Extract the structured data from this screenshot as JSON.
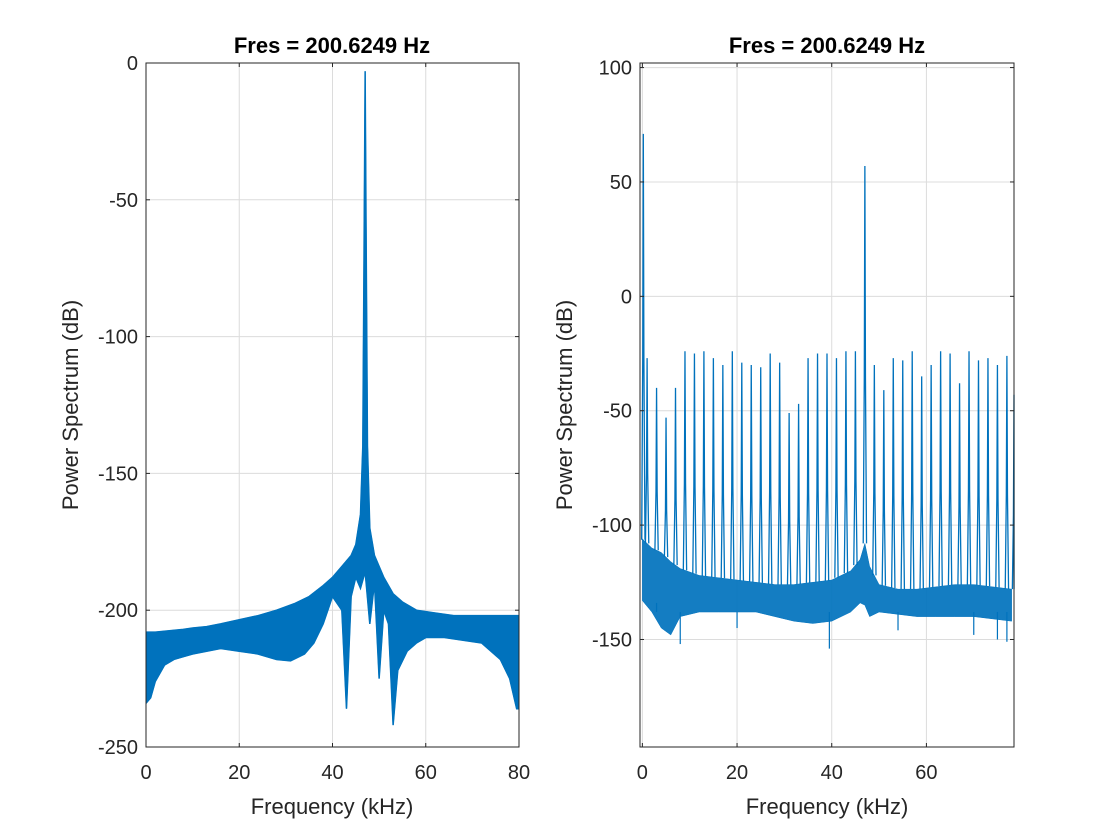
{
  "chart_data": [
    {
      "type": "line",
      "title": "Fres = 200.6249 Hz",
      "xlabel": "Frequency (kHz)",
      "ylabel": "Power Spectrum (dB)",
      "xlim": [
        0,
        80
      ],
      "ylim": [
        -250,
        0
      ],
      "xticks": [
        0,
        20,
        40,
        60,
        80
      ],
      "yticks": [
        -250,
        -200,
        -150,
        -100,
        -50,
        0
      ],
      "grid": true,
      "color": "#0072BD",
      "series": [
        {
          "x": [
            0,
            2,
            5,
            8,
            10,
            13,
            16,
            20,
            24,
            28,
            32,
            35,
            38,
            40,
            42,
            43,
            44,
            45,
            46,
            46.5,
            46.8,
            47,
            47.2,
            47.5,
            48,
            49,
            50,
            51,
            53,
            55,
            58,
            62,
            66,
            70,
            74,
            77,
            80
          ],
          "y": [
            -208,
            -208,
            -207.5,
            -207,
            -206.5,
            -206,
            -205,
            -203.5,
            -202,
            -200,
            -197.5,
            -195,
            -191,
            -188,
            -184,
            -182,
            -180,
            -176,
            -165,
            -140,
            -60,
            -3,
            -60,
            -140,
            -170,
            -180,
            -184,
            -188,
            -194,
            -197,
            -200,
            -201,
            -202,
            -202,
            -202,
            -202,
            -202
          ]
        },
        {
          "x": [
            0,
            1,
            2,
            4,
            6,
            8,
            10,
            13,
            16,
            20,
            24,
            28,
            31,
            34,
            36,
            38,
            40,
            42,
            43,
            44,
            45,
            46,
            47,
            48,
            49,
            50,
            51,
            52,
            53,
            54,
            56,
            58,
            60,
            64,
            68,
            72,
            76,
            78,
            79.5,
            80
          ],
          "y": [
            -234,
            -232,
            -226,
            -220,
            -218,
            -217,
            -216,
            -215,
            -214,
            -215,
            -216,
            -218,
            -218.5,
            -216,
            -212,
            -205,
            -195,
            -200,
            -236,
            -195,
            -188,
            -192,
            -186,
            -205,
            -190,
            -225,
            -200,
            -205,
            -242,
            -222,
            -215,
            -212,
            -210,
            -210,
            -211,
            -212,
            -218,
            -225,
            -236,
            -236
          ]
        }
      ]
    },
    {
      "type": "line",
      "title": "Fres = 200.6249 Hz",
      "xlabel": "Frequency (kHz)",
      "ylabel": "Power Spectrum (dB)",
      "xlim": [
        -0.5,
        78.5
      ],
      "ylim": [
        -197,
        102
      ],
      "xticks": [
        0,
        20,
        40,
        60
      ],
      "yticks": [
        -150,
        -100,
        -50,
        0,
        50,
        100
      ],
      "grid": true,
      "color": "#0072BD",
      "peak_spacing_khz": 2,
      "peaks": [
        {
          "x": 0.2,
          "y": 71
        },
        {
          "x": 1.0,
          "y": -27
        },
        {
          "x": 3.0,
          "y": -40
        },
        {
          "x": 5.0,
          "y": -53
        },
        {
          "x": 7.0,
          "y": -40
        },
        {
          "x": 9.0,
          "y": -24
        },
        {
          "x": 11.0,
          "y": -25
        },
        {
          "x": 13.0,
          "y": -24
        },
        {
          "x": 15.0,
          "y": -27
        },
        {
          "x": 17.0,
          "y": -30
        },
        {
          "x": 19.0,
          "y": -24
        },
        {
          "x": 21.0,
          "y": -29
        },
        {
          "x": 23.0,
          "y": -30
        },
        {
          "x": 25.0,
          "y": -31
        },
        {
          "x": 27.0,
          "y": -25
        },
        {
          "x": 29.0,
          "y": -29
        },
        {
          "x": 31.0,
          "y": -51
        },
        {
          "x": 33.0,
          "y": -47
        },
        {
          "x": 35.0,
          "y": -27
        },
        {
          "x": 37.0,
          "y": -25
        },
        {
          "x": 39.0,
          "y": -25
        },
        {
          "x": 41.0,
          "y": -27
        },
        {
          "x": 43.0,
          "y": -24
        },
        {
          "x": 45.0,
          "y": -24
        },
        {
          "x": 47.0,
          "y": 57
        },
        {
          "x": 49.0,
          "y": -30
        },
        {
          "x": 51.0,
          "y": -41
        },
        {
          "x": 53.0,
          "y": -27
        },
        {
          "x": 55.0,
          "y": -28
        },
        {
          "x": 57.0,
          "y": -24
        },
        {
          "x": 59.0,
          "y": -35
        },
        {
          "x": 61.0,
          "y": -30
        },
        {
          "x": 63.0,
          "y": -24
        },
        {
          "x": 65.0,
          "y": -25
        },
        {
          "x": 67.0,
          "y": -38
        },
        {
          "x": 69.0,
          "y": -24
        },
        {
          "x": 71.0,
          "y": -28
        },
        {
          "x": 73.0,
          "y": -27
        },
        {
          "x": 75.0,
          "y": -30
        },
        {
          "x": 77.0,
          "y": -26
        },
        {
          "x": 78.5,
          "y": -43
        }
      ],
      "floor": {
        "x": [
          0,
          2,
          4,
          6,
          8,
          12,
          16,
          20,
          24,
          28,
          32,
          36,
          40,
          44,
          46,
          47,
          48,
          50,
          54,
          58,
          62,
          66,
          70,
          74,
          78
        ],
        "upper": [
          -106,
          -110,
          -112,
          -116,
          -119,
          -122,
          -123,
          -124,
          -125,
          -126,
          -126,
          -125,
          -124,
          -120,
          -115,
          -108,
          -118,
          -126,
          -128,
          -128,
          -127,
          -126,
          -126,
          -127,
          -128
        ],
        "lower": [
          -133,
          -138,
          -145,
          -148,
          -140,
          -138,
          -138,
          -138,
          -138,
          -140,
          -142,
          -143,
          -142,
          -138,
          -134,
          -135,
          -140,
          -138,
          -139,
          -140,
          -140,
          -140,
          -140,
          -141,
          -142
        ]
      },
      "dips": [
        {
          "x": 3.0,
          "y": -134
        },
        {
          "x": 8.0,
          "y": -152
        },
        {
          "x": 20.0,
          "y": -145
        },
        {
          "x": 39.5,
          "y": -154
        },
        {
          "x": 54.0,
          "y": -146
        },
        {
          "x": 70.0,
          "y": -148
        },
        {
          "x": 75.0,
          "y": -150
        },
        {
          "x": 77.0,
          "y": -151
        }
      ]
    }
  ]
}
